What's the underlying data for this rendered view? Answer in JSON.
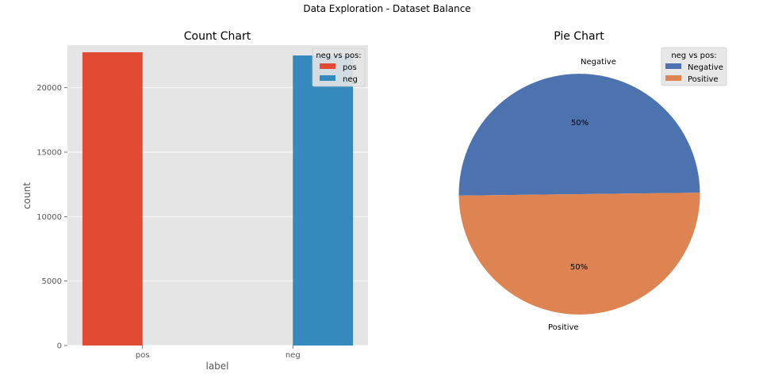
{
  "figure": {
    "suptitle": "Data Exploration - Dataset Balance"
  },
  "chart_data": [
    {
      "type": "bar",
      "title": "Count Chart",
      "xlabel": "label",
      "ylabel": "count",
      "categories": [
        "pos",
        "neg"
      ],
      "ylim": [
        0,
        23300
      ],
      "yticks": [
        0,
        5000,
        10000,
        15000,
        20000
      ],
      "yticklabels": [
        "0",
        "5000",
        "10000",
        "15000",
        "20000"
      ],
      "grid": true,
      "legend": {
        "title": "neg vs pos:",
        "placement": "top-right"
      },
      "series": [
        {
          "name": "pos",
          "color": "#E24A33",
          "values": [
            22750,
            0
          ]
        },
        {
          "name": "neg",
          "color": "#348ABD",
          "values": [
            0,
            22500
          ]
        }
      ]
    },
    {
      "type": "pie",
      "title": "Pie Chart",
      "legend": {
        "title": "neg vs pos:",
        "placement": "top-right"
      },
      "slices": [
        {
          "label": "Negative",
          "value": 50,
          "pct_label": "50%",
          "color": "#4C72B0"
        },
        {
          "label": "Positive",
          "value": 50,
          "pct_label": "50%",
          "color": "#DD8452"
        }
      ]
    }
  ]
}
